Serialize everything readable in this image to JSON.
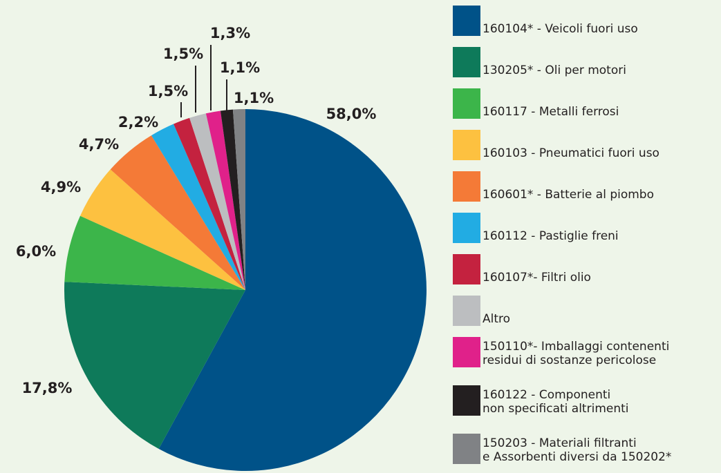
{
  "chart_data": {
    "type": "pie",
    "categories": [
      "160104* - Veicoli fuori uso",
      "130205* - Oli per motori",
      "160117 - Metalli ferrosi",
      "160103 - Pneumatici fuori uso",
      "160601* - Batterie al piombo",
      "160112 - Pastiglie freni",
      "160107*- Filtri olio",
      "Altro",
      "150110*- Imballaggi contenenti\nresidui di sostanze pericolose",
      "160122 - Componenti\nnon specificati altrimenti",
      "150203 - Materiali filtranti\ne Assorbenti  diversi da 150202*"
    ],
    "values": [
      58.0,
      17.8,
      6.0,
      4.9,
      4.7,
      2.2,
      1.5,
      1.5,
      1.3,
      1.1,
      1.1
    ],
    "value_labels": [
      "58,0%",
      "17,8%",
      "6,0%",
      "4,9%",
      "4,7%",
      "2,2%",
      "1,5%",
      "1,5%",
      "1,3%",
      "1,1%",
      "1,1%"
    ],
    "colors": [
      "#005288",
      "#0e7a5a",
      "#3cb54a",
      "#fdc140",
      "#f47a37",
      "#22ace3",
      "#c4223f",
      "#bcbec0",
      "#e0218a",
      "#231f20",
      "#808285"
    ]
  }
}
